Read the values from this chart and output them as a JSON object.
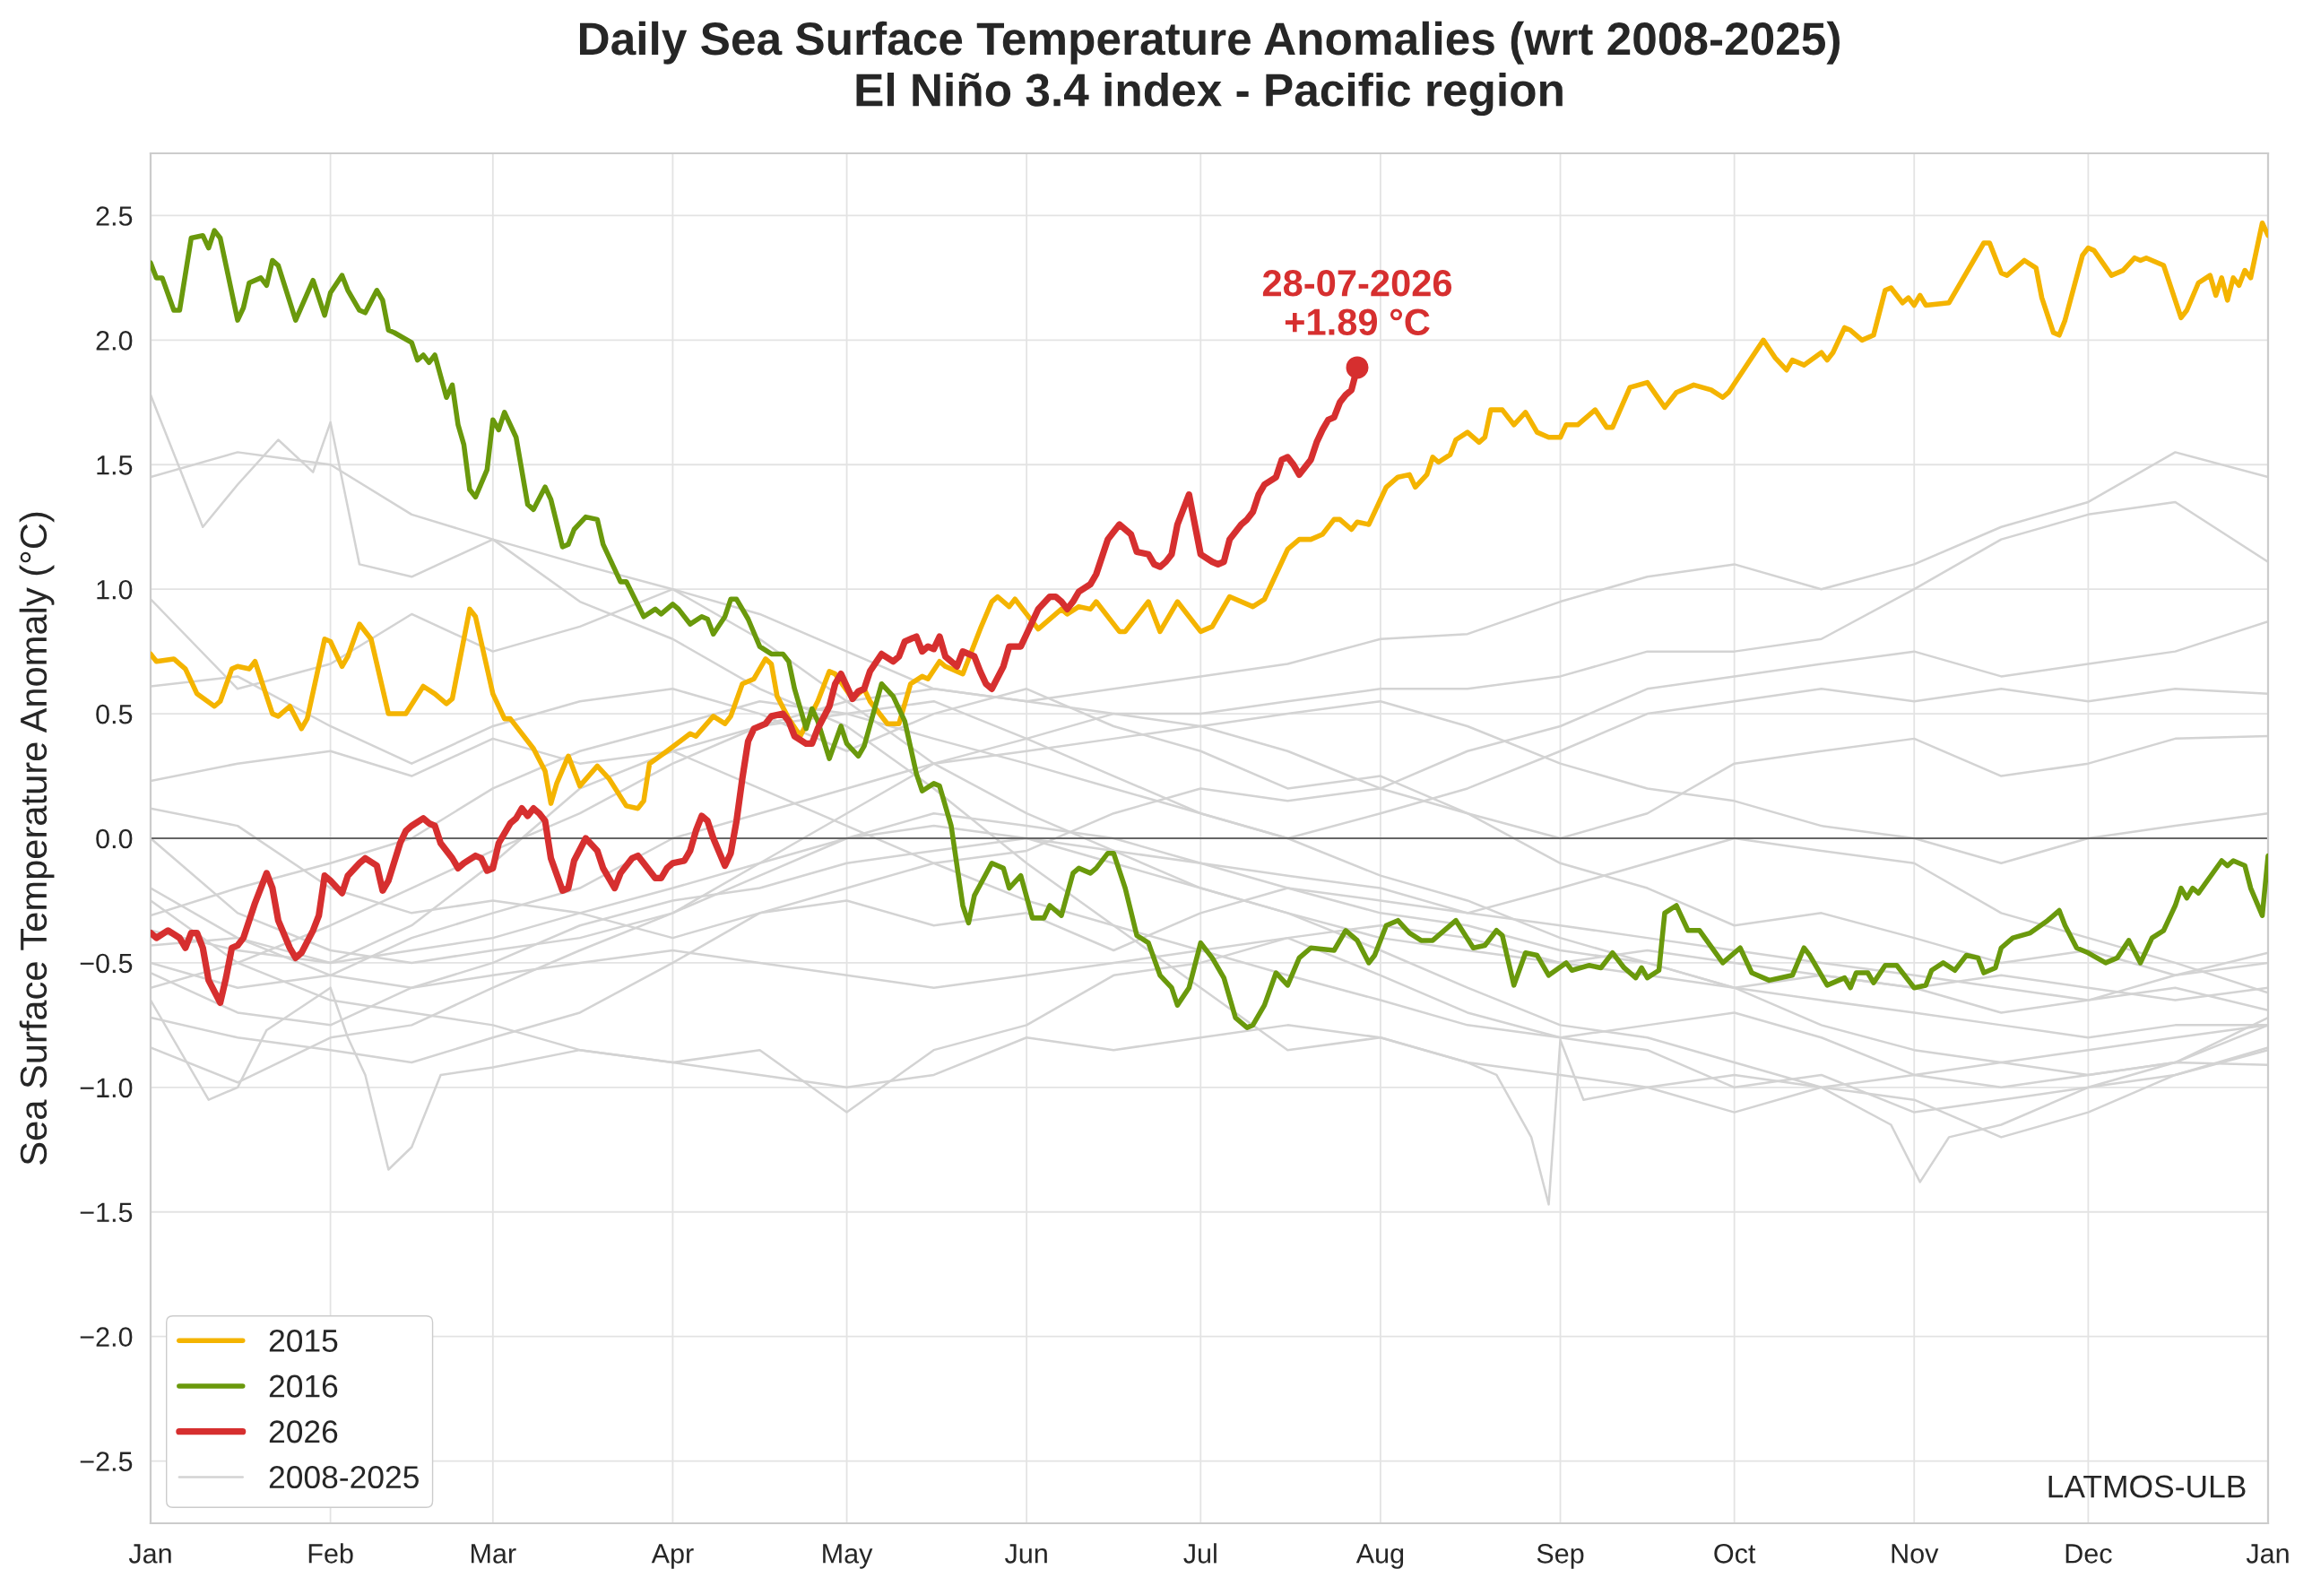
{
  "chart_data": {
    "type": "line",
    "title": "Daily Sea Surface Temperature Anomalies (wrt 2008-2025)\nEl Niño 3.4 index - Pacific region",
    "ylabel": "Sea Surface Temperature Anomaly (°C)",
    "annotations": [
      {
        "text": "28-07-2026\n+1.89 °C",
        "x": "2026-07-28",
        "y": 1.89
      },
      "LATMOS-ULB"
    ],
    "xlim": [
      "2026-01-01",
      "2027-01-01"
    ],
    "xticks": [
      {
        "value": "2026-01-01",
        "label": "Jan"
      },
      {
        "value": "2026-02-01",
        "label": "Feb"
      },
      {
        "value": "2026-03-01",
        "label": "Mar"
      },
      {
        "value": "2026-04-01",
        "label": "Apr"
      },
      {
        "value": "2026-05-01",
        "label": "May"
      },
      {
        "value": "2026-06-01",
        "label": "Jun"
      },
      {
        "value": "2026-07-01",
        "label": "Jul"
      },
      {
        "value": "2026-08-01",
        "label": "Aug"
      },
      {
        "value": "2026-09-01",
        "label": "Sep"
      },
      {
        "value": "2026-10-01",
        "label": "Oct"
      },
      {
        "value": "2026-11-01",
        "label": "Nov"
      },
      {
        "value": "2026-12-01",
        "label": "Dec"
      },
      {
        "value": "2027-01-01",
        "label": "Jan"
      }
    ],
    "ylim": [
      -2.75,
      2.75
    ],
    "yticks": [
      {
        "value": -2.5,
        "label": "−2.5"
      },
      {
        "value": -2.0,
        "label": "−2.0"
      },
      {
        "value": -1.5,
        "label": "−1.5"
      },
      {
        "value": -1.0,
        "label": "−1.0"
      },
      {
        "value": -0.5,
        "label": "−0.5"
      },
      {
        "value": 0.0,
        "label": "0.0"
      },
      {
        "value": 0.5,
        "label": "0.5"
      },
      {
        "value": 1.0,
        "label": "1.0"
      },
      {
        "value": 1.5,
        "label": "1.5"
      },
      {
        "value": 2.0,
        "label": "2.0"
      },
      {
        "value": 2.5,
        "label": "2.5"
      }
    ],
    "grid": true,
    "legend": "bottom left",
    "ref_lines": [
      {
        "axis": "y",
        "value": 0,
        "color": "#666666"
      }
    ],
    "x": [
      "2026-01-01",
      "2026-01-16",
      "2026-02-01",
      "2026-02-15",
      "2026-03-01",
      "2026-03-16",
      "2026-04-01",
      "2026-04-16",
      "2026-05-01",
      "2026-05-16",
      "2026-06-01",
      "2026-06-16",
      "2026-07-01",
      "2026-07-16",
      "2026-08-01",
      "2026-08-16",
      "2026-09-01",
      "2026-09-16",
      "2026-10-01",
      "2026-10-16",
      "2026-11-01",
      "2026-11-16",
      "2026-12-01",
      "2026-12-16",
      "2027-01-01"
    ],
    "series": [
      {
        "name": "2015",
        "color": "#f4b400",
        "x": [
          "2026-01-01",
          "2026-01-02",
          "2026-01-05",
          "2026-01-07",
          "2026-01-09",
          "2026-01-12",
          "2026-01-13",
          "2026-01-15",
          "2026-01-16",
          "2026-01-18",
          "2026-01-19",
          "2026-01-22",
          "2026-01-23",
          "2026-01-25",
          "2026-01-27",
          "2026-01-28",
          "2026-01-31",
          "2026-02-01",
          "2026-02-03",
          "2026-02-04",
          "2026-02-06",
          "2026-02-08",
          "2026-02-11",
          "2026-02-14",
          "2026-02-17",
          "2026-02-19",
          "2026-02-21",
          "2026-02-22",
          "2026-02-25",
          "2026-02-26",
          "2026-03-01",
          "2026-03-03",
          "2026-03-04",
          "2026-03-08",
          "2026-03-10",
          "2026-03-11",
          "2026-03-12",
          "2026-03-14",
          "2026-03-16",
          "2026-03-19",
          "2026-03-21",
          "2026-03-24",
          "2026-03-26",
          "2026-03-27",
          "2026-03-28",
          "2026-03-31",
          "2026-04-04",
          "2026-04-05",
          "2026-04-08",
          "2026-04-10",
          "2026-04-11",
          "2026-04-13",
          "2026-04-15",
          "2026-04-17",
          "2026-04-18",
          "2026-04-19",
          "2026-04-21",
          "2026-04-23",
          "2026-04-26",
          "2026-04-28",
          "2026-04-29",
          "2026-05-02",
          "2026-05-04",
          "2026-05-05",
          "2026-05-08",
          "2026-05-10",
          "2026-05-12",
          "2026-05-14",
          "2026-05-15",
          "2026-05-17",
          "2026-05-18",
          "2026-05-21",
          "2026-05-24",
          "2026-05-26",
          "2026-05-27",
          "2026-05-29",
          "2026-05-30",
          "2026-05-31",
          "2026-06-03",
          "2026-06-07",
          "2026-06-08",
          "2026-06-10",
          "2026-06-12",
          "2026-06-13",
          "2026-06-17",
          "2026-06-18",
          "2026-06-22",
          "2026-06-24",
          "2026-06-27",
          "2026-07-01",
          "2026-07-03",
          "2026-07-06",
          "2026-07-10",
          "2026-07-12",
          "2026-07-16",
          "2026-07-18",
          "2026-07-20",
          "2026-07-22",
          "2026-07-24",
          "2026-07-25",
          "2026-07-27",
          "2026-07-28",
          "2026-07-30",
          "2026-08-02",
          "2026-08-04",
          "2026-08-06",
          "2026-08-07",
          "2026-08-09",
          "2026-08-10",
          "2026-08-11",
          "2026-08-13",
          "2026-08-14",
          "2026-08-16",
          "2026-08-18",
          "2026-08-19",
          "2026-08-20",
          "2026-08-22",
          "2026-08-24",
          "2026-08-26",
          "2026-08-28",
          "2026-08-30",
          "2026-09-01",
          "2026-09-02",
          "2026-09-04",
          "2026-09-07",
          "2026-09-09",
          "2026-09-10",
          "2026-09-13",
          "2026-09-16",
          "2026-09-19",
          "2026-09-21",
          "2026-09-24",
          "2026-09-27",
          "2026-09-29",
          "2026-09-30",
          "2026-10-06",
          "2026-10-08",
          "2026-10-10",
          "2026-10-11",
          "2026-10-13",
          "2026-10-16",
          "2026-10-17",
          "2026-10-18",
          "2026-10-20",
          "2026-10-21",
          "2026-10-23",
          "2026-10-25",
          "2026-10-27",
          "2026-10-28",
          "2026-10-30",
          "2026-10-31",
          "2026-11-01",
          "2026-11-02",
          "2026-11-03",
          "2026-11-07",
          "2026-11-13",
          "2026-11-14",
          "2026-11-16",
          "2026-11-17",
          "2026-11-20",
          "2026-11-22",
          "2026-11-23",
          "2026-11-25",
          "2026-11-26",
          "2026-11-27",
          "2026-11-30",
          "2026-12-01",
          "2026-12-02",
          "2026-12-05",
          "2026-12-07",
          "2026-12-09",
          "2026-12-10",
          "2026-12-11",
          "2026-12-14",
          "2026-12-17",
          "2026-12-18",
          "2026-12-20",
          "2026-12-22",
          "2026-12-23",
          "2026-12-24",
          "2026-12-25",
          "2026-12-26",
          "2026-12-27",
          "2026-12-28",
          "2026-12-29",
          "2026-12-31",
          "2027-01-01"
        ],
        "values": [
          0.74,
          0.71,
          0.72,
          0.68,
          0.58,
          0.53,
          0.55,
          0.68,
          0.69,
          0.68,
          0.71,
          0.5,
          0.49,
          0.53,
          0.44,
          0.48,
          0.8,
          0.79,
          0.69,
          0.73,
          0.86,
          0.8,
          0.5,
          0.5,
          0.61,
          0.58,
          0.54,
          0.56,
          0.92,
          0.89,
          0.58,
          0.48,
          0.48,
          0.36,
          0.27,
          0.14,
          0.22,
          0.33,
          0.21,
          0.29,
          0.24,
          0.13,
          0.12,
          0.15,
          0.3,
          0.35,
          0.42,
          0.41,
          0.49,
          0.46,
          0.49,
          0.62,
          0.64,
          0.72,
          0.7,
          0.57,
          0.48,
          0.41,
          0.55,
          0.67,
          0.66,
          0.56,
          0.6,
          0.55,
          0.46,
          0.46,
          0.62,
          0.65,
          0.64,
          0.71,
          0.69,
          0.66,
          0.84,
          0.95,
          0.97,
          0.93,
          0.96,
          0.93,
          0.84,
          0.92,
          0.9,
          0.93,
          0.92,
          0.95,
          0.83,
          0.83,
          0.95,
          0.83,
          0.95,
          0.83,
          0.85,
          0.97,
          0.93,
          0.96,
          1.16,
          1.2,
          1.2,
          1.22,
          1.28,
          1.28,
          1.24,
          1.27,
          1.26,
          1.41,
          1.45,
          1.46,
          1.41,
          1.46,
          1.53,
          1.51,
          1.54,
          1.6,
          1.63,
          1.59,
          1.61,
          1.72,
          1.72,
          1.66,
          1.71,
          1.63,
          1.61,
          1.61,
          1.66,
          1.66,
          1.72,
          1.65,
          1.65,
          1.81,
          1.83,
          1.73,
          1.79,
          1.82,
          1.8,
          1.77,
          1.79,
          2.0,
          1.93,
          1.88,
          1.92,
          1.9,
          1.95,
          1.92,
          1.95,
          2.05,
          2.04,
          2.0,
          2.02,
          2.2,
          2.21,
          2.15,
          2.17,
          2.14,
          2.18,
          2.14,
          2.15,
          2.39,
          2.39,
          2.27,
          2.26,
          2.32,
          2.29,
          2.17,
          2.03,
          2.02,
          2.08,
          2.34,
          2.37,
          2.36,
          2.26,
          2.28,
          2.33,
          2.32,
          2.33,
          2.3,
          2.09,
          2.12,
          2.23,
          2.26,
          2.18,
          2.25,
          2.16,
          2.25,
          2.22,
          2.28,
          2.25,
          2.47,
          2.42
        ]
      },
      {
        "name": "2016",
        "color": "#6a990c",
        "x": [
          "2026-01-01",
          "2026-01-02",
          "2026-01-03",
          "2026-01-05",
          "2026-01-06",
          "2026-01-08",
          "2026-01-10",
          "2026-01-11",
          "2026-01-12",
          "2026-01-13",
          "2026-01-16",
          "2026-01-17",
          "2026-01-18",
          "2026-01-20",
          "2026-01-21",
          "2026-01-22",
          "2026-01-23",
          "2026-01-26",
          "2026-01-29",
          "2026-01-31",
          "2026-02-01",
          "2026-02-03",
          "2026-02-04",
          "2026-02-06",
          "2026-02-07",
          "2026-02-09",
          "2026-02-10",
          "2026-02-11",
          "2026-02-12",
          "2026-02-15",
          "2026-02-16",
          "2026-02-17",
          "2026-02-18",
          "2026-02-19",
          "2026-02-21",
          "2026-02-22",
          "2026-02-23",
          "2026-02-24",
          "2026-02-25",
          "2026-02-26",
          "2026-02-28",
          "2026-03-01",
          "2026-03-02",
          "2026-03-03",
          "2026-03-05",
          "2026-03-07",
          "2026-03-08",
          "2026-03-10",
          "2026-03-11",
          "2026-03-13",
          "2026-03-14",
          "2026-03-15",
          "2026-03-17",
          "2026-03-19",
          "2026-03-20",
          "2026-03-23",
          "2026-03-24",
          "2026-03-27",
          "2026-03-29",
          "2026-03-30",
          "2026-04-01",
          "2026-04-02",
          "2026-04-04",
          "2026-04-06",
          "2026-04-07",
          "2026-04-08",
          "2026-04-10",
          "2026-04-11",
          "2026-04-12",
          "2026-04-14",
          "2026-04-16",
          "2026-04-18",
          "2026-04-20",
          "2026-04-21",
          "2026-04-22",
          "2026-04-24",
          "2026-04-25",
          "2026-04-26",
          "2026-04-28",
          "2026-04-30",
          "2026-05-01",
          "2026-05-03",
          "2026-05-04",
          "2026-05-07",
          "2026-05-09",
          "2026-05-11",
          "2026-05-13",
          "2026-05-14",
          "2026-05-16",
          "2026-05-17",
          "2026-05-19",
          "2026-05-21",
          "2026-05-22",
          "2026-05-23",
          "2026-05-26",
          "2026-05-28",
          "2026-05-29",
          "2026-05-31",
          "2026-06-02",
          "2026-06-04",
          "2026-06-05",
          "2026-06-07",
          "2026-06-09",
          "2026-06-10",
          "2026-06-12",
          "2026-06-13",
          "2026-06-15",
          "2026-06-16",
          "2026-06-18",
          "2026-06-20",
          "2026-06-22",
          "2026-06-24",
          "2026-06-26",
          "2026-06-27",
          "2026-06-29",
          "2026-07-01",
          "2026-07-03",
          "2026-07-05",
          "2026-07-07",
          "2026-07-09",
          "2026-07-10",
          "2026-07-12",
          "2026-07-14",
          "2026-07-16",
          "2026-07-18",
          "2026-07-20",
          "2026-07-24",
          "2026-07-26",
          "2026-07-28",
          "2026-07-30",
          "2026-07-31",
          "2026-08-02",
          "2026-08-04",
          "2026-08-06",
          "2026-08-08",
          "2026-08-10",
          "2026-08-14",
          "2026-08-17",
          "2026-08-19",
          "2026-08-21",
          "2026-08-22",
          "2026-08-24",
          "2026-08-26",
          "2026-08-28",
          "2026-08-30",
          "2026-09-02",
          "2026-09-03",
          "2026-09-06",
          "2026-09-08",
          "2026-09-10",
          "2026-09-12",
          "2026-09-14",
          "2026-09-15",
          "2026-09-16",
          "2026-09-18",
          "2026-09-19",
          "2026-09-21",
          "2026-09-23",
          "2026-09-25",
          "2026-09-29",
          "2026-10-02",
          "2026-10-04",
          "2026-10-07",
          "2026-10-11",
          "2026-10-13",
          "2026-10-14",
          "2026-10-17",
          "2026-10-20",
          "2026-10-21",
          "2026-10-22",
          "2026-10-24",
          "2026-10-25",
          "2026-10-27",
          "2026-10-29",
          "2026-11-01",
          "2026-11-03",
          "2026-11-04",
          "2026-11-06",
          "2026-11-08",
          "2026-11-10",
          "2026-11-12",
          "2026-11-13",
          "2026-11-15",
          "2026-11-16",
          "2026-11-18",
          "2026-11-21",
          "2026-11-24",
          "2026-11-26",
          "2026-11-27",
          "2026-11-29",
          "2026-12-01",
          "2026-12-04",
          "2026-12-06",
          "2026-12-08",
          "2026-12-10",
          "2026-12-12",
          "2026-12-14",
          "2026-12-16",
          "2026-12-17",
          "2026-12-18",
          "2026-12-19",
          "2026-12-20",
          "2026-12-24",
          "2026-12-25",
          "2026-12-26",
          "2026-12-28",
          "2026-12-29",
          "2026-12-31",
          "2027-01-01"
        ],
        "values": [
          2.31,
          2.25,
          2.25,
          2.12,
          2.12,
          2.41,
          2.42,
          2.37,
          2.44,
          2.41,
          2.08,
          2.13,
          2.23,
          2.25,
          2.22,
          2.32,
          2.3,
          2.08,
          2.24,
          2.1,
          2.19,
          2.26,
          2.2,
          2.12,
          2.11,
          2.2,
          2.16,
          2.04,
          2.03,
          1.99,
          1.92,
          1.94,
          1.91,
          1.94,
          1.77,
          1.82,
          1.66,
          1.58,
          1.4,
          1.37,
          1.48,
          1.68,
          1.64,
          1.71,
          1.61,
          1.34,
          1.32,
          1.41,
          1.36,
          1.17,
          1.18,
          1.24,
          1.29,
          1.28,
          1.18,
          1.03,
          1.03,
          0.89,
          0.92,
          0.9,
          0.94,
          0.92,
          0.86,
          0.89,
          0.88,
          0.82,
          0.89,
          0.96,
          0.96,
          0.88,
          0.77,
          0.74,
          0.74,
          0.71,
          0.6,
          0.44,
          0.52,
          0.47,
          0.32,
          0.45,
          0.38,
          0.33,
          0.37,
          0.62,
          0.57,
          0.47,
          0.26,
          0.19,
          0.22,
          0.21,
          0.05,
          -0.27,
          -0.34,
          -0.23,
          -0.1,
          -0.12,
          -0.2,
          -0.15,
          -0.32,
          -0.32,
          -0.27,
          -0.31,
          -0.14,
          -0.12,
          -0.14,
          -0.12,
          -0.06,
          -0.06,
          -0.2,
          -0.39,
          -0.42,
          -0.55,
          -0.6,
          -0.67,
          -0.6,
          -0.42,
          -0.48,
          -0.56,
          -0.72,
          -0.76,
          -0.75,
          -0.67,
          -0.54,
          -0.59,
          -0.48,
          -0.44,
          -0.45,
          -0.37,
          -0.41,
          -0.5,
          -0.47,
          -0.35,
          -0.33,
          -0.38,
          -0.41,
          -0.41,
          -0.33,
          -0.44,
          -0.43,
          -0.37,
          -0.39,
          -0.59,
          -0.46,
          -0.47,
          -0.55,
          -0.5,
          -0.53,
          -0.51,
          -0.52,
          -0.46,
          -0.52,
          -0.56,
          -0.52,
          -0.56,
          -0.53,
          -0.3,
          -0.27,
          -0.37,
          -0.37,
          -0.5,
          -0.44,
          -0.54,
          -0.57,
          -0.55,
          -0.44,
          -0.47,
          -0.59,
          -0.56,
          -0.6,
          -0.54,
          -0.54,
          -0.58,
          -0.51,
          -0.51,
          -0.6,
          -0.59,
          -0.53,
          -0.5,
          -0.53,
          -0.47,
          -0.48,
          -0.54,
          -0.52,
          -0.44,
          -0.4,
          -0.38,
          -0.33,
          -0.29,
          -0.35,
          -0.44,
          -0.46,
          -0.5,
          -0.48,
          -0.41,
          -0.5,
          -0.4,
          -0.37,
          -0.27,
          -0.2,
          -0.24,
          -0.2,
          -0.22,
          -0.09,
          -0.11,
          -0.09,
          -0.11,
          -0.2,
          -0.31,
          -0.07
        ]
      },
      {
        "name": "2026",
        "color": "#d62f2f",
        "x": [
          "2026-01-01",
          "2026-01-02",
          "2026-01-04",
          "2026-01-06",
          "2026-01-07",
          "2026-01-08",
          "2026-01-09",
          "2026-01-10",
          "2026-01-11",
          "2026-01-13",
          "2026-01-14",
          "2026-01-15",
          "2026-01-16",
          "2026-01-17",
          "2026-01-19",
          "2026-01-21",
          "2026-01-22",
          "2026-01-23",
          "2026-01-25",
          "2026-01-26",
          "2026-01-27",
          "2026-01-29",
          "2026-01-30",
          "2026-01-31",
          "2026-02-01",
          "2026-02-03",
          "2026-02-04",
          "2026-02-06",
          "2026-02-07",
          "2026-02-09",
          "2026-02-10",
          "2026-02-11",
          "2026-02-13",
          "2026-02-14",
          "2026-02-15",
          "2026-02-17",
          "2026-02-18",
          "2026-02-19",
          "2026-02-20",
          "2026-02-22",
          "2026-02-23",
          "2026-02-24",
          "2026-02-26",
          "2026-02-27",
          "2026-02-28",
          "2026-03-01",
          "2026-03-02",
          "2026-03-04",
          "2026-03-05",
          "2026-03-06",
          "2026-03-07",
          "2026-03-08",
          "2026-03-09",
          "2026-03-10",
          "2026-03-11",
          "2026-03-13",
          "2026-03-14",
          "2026-03-15",
          "2026-03-17",
          "2026-03-19",
          "2026-03-20",
          "2026-03-22",
          "2026-03-23",
          "2026-03-25",
          "2026-03-26",
          "2026-03-27",
          "2026-03-29",
          "2026-03-30",
          "2026-03-31",
          "2026-04-01",
          "2026-04-03",
          "2026-04-04",
          "2026-04-05",
          "2026-04-06",
          "2026-04-07",
          "2026-04-08",
          "2026-04-10",
          "2026-04-11",
          "2026-04-12",
          "2026-04-13",
          "2026-04-14",
          "2026-04-15",
          "2026-04-17",
          "2026-04-18",
          "2026-04-20",
          "2026-04-21",
          "2026-04-22",
          "2026-04-24",
          "2026-04-25",
          "2026-04-26",
          "2026-04-28",
          "2026-04-29",
          "2026-04-30",
          "2026-05-01",
          "2026-05-02",
          "2026-05-03",
          "2026-05-04",
          "2026-05-05",
          "2026-05-07",
          "2026-05-09",
          "2026-05-10",
          "2026-05-11",
          "2026-05-13",
          "2026-05-14",
          "2026-05-15",
          "2026-05-16",
          "2026-05-17",
          "2026-05-18",
          "2026-05-20",
          "2026-05-21",
          "2026-05-23",
          "2026-05-24",
          "2026-05-25",
          "2026-05-26",
          "2026-05-28",
          "2026-05-29",
          "2026-05-31",
          "2026-06-01",
          "2026-06-03",
          "2026-06-05",
          "2026-06-06",
          "2026-06-07",
          "2026-06-08",
          "2026-06-09",
          "2026-06-10",
          "2026-06-12",
          "2026-06-13",
          "2026-06-15",
          "2026-06-16",
          "2026-06-17",
          "2026-06-19",
          "2026-06-20",
          "2026-06-22",
          "2026-06-23",
          "2026-06-24",
          "2026-06-25",
          "2026-06-26",
          "2026-06-27",
          "2026-06-28",
          "2026-06-29",
          "2026-06-30",
          "2026-07-01",
          "2026-07-03",
          "2026-07-04",
          "2026-07-05",
          "2026-07-06",
          "2026-07-08",
          "2026-07-09",
          "2026-07-10",
          "2026-07-11",
          "2026-07-12",
          "2026-07-14",
          "2026-07-15",
          "2026-07-16",
          "2026-07-17",
          "2026-07-18",
          "2026-07-19",
          "2026-07-20",
          "2026-07-21",
          "2026-07-22",
          "2026-07-23",
          "2026-07-24",
          "2026-07-25",
          "2026-07-26",
          "2026-07-27",
          "2026-07-28"
        ],
        "values": [
          -0.38,
          -0.4,
          -0.37,
          -0.4,
          -0.44,
          -0.38,
          -0.38,
          -0.44,
          -0.57,
          -0.66,
          -0.56,
          -0.44,
          -0.43,
          -0.4,
          -0.26,
          -0.14,
          -0.2,
          -0.33,
          -0.44,
          -0.48,
          -0.46,
          -0.37,
          -0.31,
          -0.15,
          -0.17,
          -0.22,
          -0.15,
          -0.1,
          -0.08,
          -0.11,
          -0.21,
          -0.17,
          -0.02,
          0.03,
          0.05,
          0.08,
          0.06,
          0.05,
          -0.02,
          -0.08,
          -0.12,
          -0.1,
          -0.07,
          -0.08,
          -0.13,
          -0.12,
          -0.02,
          0.06,
          0.08,
          0.12,
          0.09,
          0.12,
          0.1,
          0.07,
          -0.08,
          -0.21,
          -0.2,
          -0.09,
          0.0,
          -0.05,
          -0.12,
          -0.2,
          -0.14,
          -0.08,
          -0.07,
          -0.1,
          -0.16,
          -0.16,
          -0.12,
          -0.1,
          -0.09,
          -0.05,
          0.03,
          0.09,
          0.07,
          0.0,
          -0.11,
          -0.06,
          0.07,
          0.24,
          0.39,
          0.44,
          0.46,
          0.49,
          0.5,
          0.47,
          0.41,
          0.38,
          0.38,
          0.44,
          0.53,
          0.62,
          0.66,
          0.61,
          0.56,
          0.59,
          0.6,
          0.67,
          0.74,
          0.71,
          0.73,
          0.79,
          0.81,
          0.75,
          0.77,
          0.76,
          0.81,
          0.73,
          0.69,
          0.75,
          0.73,
          0.67,
          0.62,
          0.6,
          0.69,
          0.77,
          0.77,
          0.82,
          0.92,
          0.97,
          0.97,
          0.95,
          0.92,
          0.95,
          0.99,
          1.02,
          1.06,
          1.2,
          1.23,
          1.26,
          1.22,
          1.15,
          1.14,
          1.1,
          1.09,
          1.11,
          1.14,
          1.26,
          1.32,
          1.38,
          1.26,
          1.14,
          1.11,
          1.1,
          1.11,
          1.2,
          1.26,
          1.28,
          1.31,
          1.38,
          1.42,
          1.45,
          1.52,
          1.53,
          1.5,
          1.46,
          1.49,
          1.52,
          1.59,
          1.64,
          1.68,
          1.69,
          1.75,
          1.78,
          1.8,
          1.89
        ]
      },
      {
        "name": "2008-2025",
        "color": "#d3d3d3",
        "x": [
          "2026-01-01",
          "2026-01-10",
          "2026-01-16",
          "2026-01-23",
          "2026-01-29",
          "2026-02-01",
          "2026-02-06",
          "2026-02-15",
          "2026-03-01",
          "2026-03-16",
          "2026-04-01",
          "2026-04-16",
          "2026-05-01",
          "2026-05-16",
          "2026-06-01",
          "2026-06-16",
          "2026-07-01",
          "2026-07-16",
          "2026-08-01",
          "2026-08-16",
          "2026-08-21",
          "2026-08-27",
          "2026-08-30",
          "2026-09-01",
          "2026-09-05",
          "2026-09-16",
          "2026-10-01",
          "2026-10-16",
          "2026-10-28",
          "2026-11-02",
          "2026-11-07",
          "2026-11-16",
          "2026-12-01",
          "2026-12-16",
          "2027-01-01"
        ],
        "values": [
          1.78,
          1.25,
          1.42,
          1.6,
          1.47,
          1.67,
          1.1,
          1.05,
          1.2,
          0.95,
          0.8,
          0.6,
          0.45,
          0.2,
          -0.1,
          -0.35,
          -0.6,
          -0.85,
          -0.8,
          -0.9,
          -0.95,
          -1.2,
          -1.47,
          -0.81,
          -1.05,
          -1.0,
          -1.1,
          -1.0,
          -1.15,
          -1.38,
          -1.2,
          -1.15,
          -1.0,
          -0.95,
          -0.85
        ]
      },
      {
        "color": "#d3d3d3",
        "values": [
          1.45,
          1.55,
          1.5,
          1.3,
          1.2,
          1.1,
          1.0,
          0.8,
          0.55,
          0.3,
          0.1,
          -0.05,
          -0.2,
          -0.3,
          -0.4,
          -0.45,
          -0.5,
          -0.45,
          -0.5,
          -0.55,
          -0.6,
          -0.55,
          -0.6,
          -0.65,
          -0.6
        ]
      },
      {
        "color": "#d3d3d3",
        "values": [
          0.96,
          0.6,
          0.7,
          0.9,
          0.75,
          0.85,
          1.0,
          0.9,
          0.75,
          0.6,
          0.55,
          0.5,
          0.45,
          0.35,
          0.2,
          0.1,
          0.0,
          0.1,
          0.3,
          0.35,
          0.4,
          0.25,
          0.3,
          0.4,
          0.41
        ]
      },
      {
        "color": "#d3d3d3",
        "values": [
          0.61,
          0.65,
          0.45,
          0.3,
          0.45,
          0.55,
          0.6,
          0.5,
          0.35,
          0.5,
          0.6,
          0.45,
          0.35,
          0.2,
          0.25,
          0.1,
          -0.1,
          -0.2,
          -0.35,
          -0.3,
          -0.4,
          -0.5,
          -0.45,
          -0.55,
          -0.5
        ]
      },
      {
        "color": "#d3d3d3",
        "values": [
          -0.6,
          -0.5,
          -0.35,
          -0.2,
          -0.05,
          0.1,
          0.3,
          0.45,
          0.55,
          0.6,
          0.55,
          0.6,
          0.65,
          0.7,
          0.8,
          0.82,
          0.95,
          1.05,
          1.1,
          1.0,
          1.1,
          1.25,
          1.35,
          1.55,
          1.45
        ]
      },
      {
        "color": "#d3d3d3",
        "values": [
          -0.84,
          -0.98,
          -0.8,
          -0.75,
          -0.6,
          -0.45,
          -0.3,
          -0.1,
          0.1,
          0.3,
          0.4,
          0.5,
          0.5,
          0.55,
          0.6,
          0.6,
          0.65,
          0.75,
          0.75,
          0.8,
          1.0,
          1.2,
          1.3,
          1.35,
          1.11
        ]
      },
      {
        "color": "#d3d3d3",
        "values": [
          -0.72,
          -0.8,
          -0.85,
          -0.9,
          -0.8,
          -0.7,
          -0.5,
          -0.3,
          -0.2,
          -0.1,
          -0.05,
          0.1,
          0.2,
          0.15,
          0.2,
          0.35,
          0.45,
          0.6,
          0.65,
          0.7,
          0.75,
          0.65,
          0.7,
          0.75,
          0.87
        ]
      },
      {
        "color": "#d3d3d3",
        "values": [
          -0.43,
          -0.4,
          -0.5,
          -0.35,
          -0.1,
          0.2,
          0.35,
          0.45,
          0.5,
          0.55,
          0.4,
          0.25,
          0.1,
          0.0,
          0.1,
          0.2,
          0.35,
          0.5,
          0.55,
          0.6,
          0.55,
          0.6,
          0.55,
          0.6,
          0.58
        ]
      },
      {
        "color": "#d3d3d3",
        "values": [
          -0.5,
          -0.6,
          -0.55,
          -0.4,
          -0.3,
          -0.2,
          0.0,
          0.1,
          0.2,
          0.3,
          0.35,
          0.4,
          0.45,
          0.5,
          0.55,
          0.45,
          0.3,
          0.2,
          0.15,
          0.05,
          0.0,
          -0.1,
          0.0,
          0.05,
          0.1
        ]
      },
      {
        "color": "#d3d3d3",
        "values": [
          -0.31,
          -0.2,
          -0.1,
          0.0,
          0.2,
          0.35,
          0.45,
          0.55,
          0.5,
          0.4,
          0.3,
          0.2,
          0.1,
          0.0,
          -0.15,
          -0.25,
          -0.4,
          -0.5,
          -0.6,
          -0.65,
          -0.7,
          -0.75,
          -0.8,
          -0.75,
          -0.75
        ]
      },
      {
        "color": "#d3d3d3",
        "x": [
          "2026-01-01",
          "2026-01-11",
          "2026-01-16",
          "2026-01-21",
          "2026-02-01",
          "2026-02-04",
          "2026-02-07",
          "2026-02-11",
          "2026-02-15",
          "2026-02-20",
          "2026-03-01",
          "2026-03-16",
          "2026-04-01",
          "2026-04-16",
          "2026-05-01",
          "2026-05-16",
          "2026-06-01",
          "2026-06-16",
          "2026-07-01",
          "2026-07-16",
          "2026-08-01",
          "2026-08-16",
          "2026-09-01",
          "2026-09-16",
          "2026-10-01",
          "2026-10-16",
          "2026-11-01",
          "2026-11-16",
          "2026-12-01",
          "2026-12-16",
          "2027-01-01"
        ],
        "values": [
          -0.65,
          -1.05,
          -1.0,
          -0.77,
          -0.6,
          -0.8,
          -0.95,
          -1.33,
          -1.24,
          -0.95,
          -0.92,
          -0.85,
          -0.9,
          -0.85,
          -1.1,
          -0.85,
          -0.75,
          -0.55,
          -0.5,
          -0.4,
          -0.35,
          -0.4,
          -0.5,
          -0.55,
          -0.6,
          -0.75,
          -0.85,
          -0.9,
          -0.95,
          -0.9,
          -0.91
        ]
      },
      {
        "color": "#d3d3d3",
        "values": [
          -0.54,
          -0.7,
          -0.75,
          -0.6,
          -0.5,
          -0.35,
          -0.25,
          -0.2,
          -0.1,
          -0.05,
          0.0,
          -0.1,
          -0.2,
          -0.3,
          -0.45,
          -0.6,
          -0.75,
          -0.8,
          -0.9,
          -1.0,
          -1.05,
          -1.2,
          -1.1,
          -0.95,
          -0.84
        ]
      },
      {
        "color": "#d3d3d3",
        "values": [
          0.23,
          0.3,
          0.35,
          0.25,
          0.4,
          0.3,
          0.35,
          0.2,
          0.05,
          -0.1,
          -0.25,
          -0.35,
          -0.45,
          -0.55,
          -0.65,
          -0.75,
          -0.8,
          -0.85,
          -1.0,
          -0.95,
          -1.1,
          -1.05,
          -1.0,
          -0.9,
          -0.75
        ]
      },
      {
        "color": "#d3d3d3",
        "values": [
          0.12,
          0.05,
          -0.2,
          -0.3,
          -0.25,
          -0.3,
          -0.4,
          -0.3,
          -0.25,
          -0.35,
          -0.3,
          -0.45,
          -0.3,
          -0.2,
          -0.25,
          -0.3,
          -0.2,
          -0.1,
          0.0,
          -0.05,
          -0.1,
          -0.3,
          -0.4,
          -0.5,
          -0.62
        ]
      },
      {
        "color": "#d3d3d3",
        "values": [
          0.0,
          -0.3,
          -0.45,
          -0.5,
          -0.45,
          -0.4,
          -0.3,
          -0.15,
          0.0,
          0.1,
          0.05,
          0.0,
          -0.1,
          -0.2,
          -0.3,
          -0.35,
          -0.45,
          -0.5,
          -0.6,
          -0.55,
          -0.6,
          -0.7,
          -0.65,
          -0.6,
          -0.69
        ]
      },
      {
        "color": "#d3d3d3",
        "values": [
          -0.2,
          -0.4,
          -0.55,
          -0.6,
          -0.55,
          -0.5,
          -0.45,
          -0.5,
          -0.55,
          -0.6,
          -0.55,
          -0.5,
          -0.45,
          -0.4,
          -0.55,
          -0.7,
          -0.8,
          -0.75,
          -0.7,
          -0.8,
          -0.95,
          -1.0,
          -0.95,
          -0.9,
          -0.72
        ]
      },
      {
        "color": "#d3d3d3",
        "values": [
          -0.25,
          -0.5,
          -0.65,
          -0.7,
          -0.75,
          -0.85,
          -0.9,
          -0.95,
          -1.0,
          -0.95,
          -0.8,
          -0.85,
          -0.8,
          -0.75,
          -0.8,
          -0.9,
          -0.95,
          -1.0,
          -0.95,
          -1.0,
          -0.95,
          -0.9,
          -0.85,
          -0.8,
          -0.75
        ]
      },
      {
        "color": "#d3d3d3",
        "values": [
          -0.37,
          -0.45,
          -0.5,
          -0.45,
          -0.4,
          -0.3,
          -0.2,
          -0.1,
          0.0,
          0.05,
          0.0,
          -0.05,
          -0.1,
          -0.15,
          -0.2,
          -0.3,
          -0.35,
          -0.4,
          -0.45,
          -0.5,
          -0.55,
          -0.6,
          -0.65,
          -0.55,
          -0.46
        ]
      }
    ]
  }
}
